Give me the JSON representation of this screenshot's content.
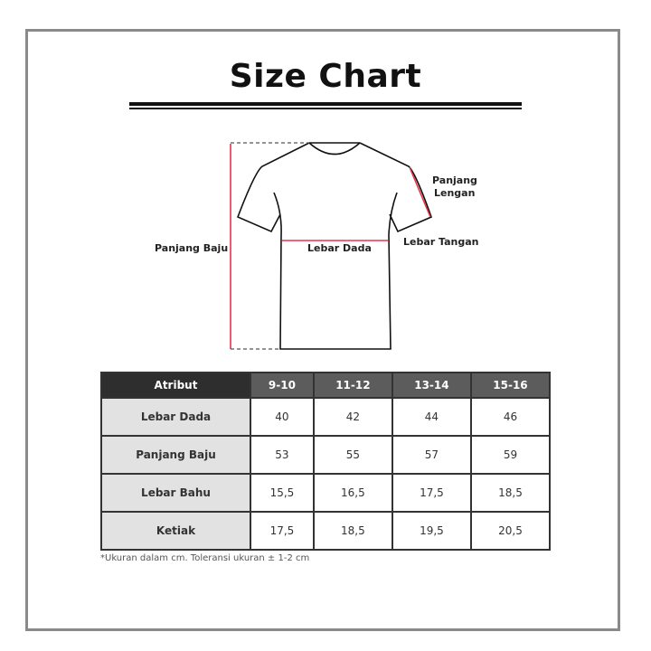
{
  "title": "Size Chart",
  "diagram": {
    "labels": {
      "panjang_baju": "Panjang Baju",
      "lebar_dada": "Lebar Dada",
      "panjang_lengan_1": "Panjang",
      "panjang_lengan_2": "Lengan",
      "lebar_tangan": "Lebar Tangan"
    },
    "measure_color": "#e8334a"
  },
  "table": {
    "headers": [
      "Atribut",
      "9-10",
      "11-12",
      "13-14",
      "15-16"
    ],
    "rows": [
      [
        "Lebar Dada",
        "40",
        "42",
        "44",
        "46"
      ],
      [
        "Panjang Baju",
        "53",
        "55",
        "57",
        "59"
      ],
      [
        "Lebar Bahu",
        "15,5",
        "16,5",
        "17,5",
        "18,5"
      ],
      [
        "Ketiak",
        "17,5",
        "18,5",
        "19,5",
        "20,5"
      ]
    ]
  },
  "footnote": "*Ukuran dalam cm. Toleransi ukuran ± 1-2 cm"
}
